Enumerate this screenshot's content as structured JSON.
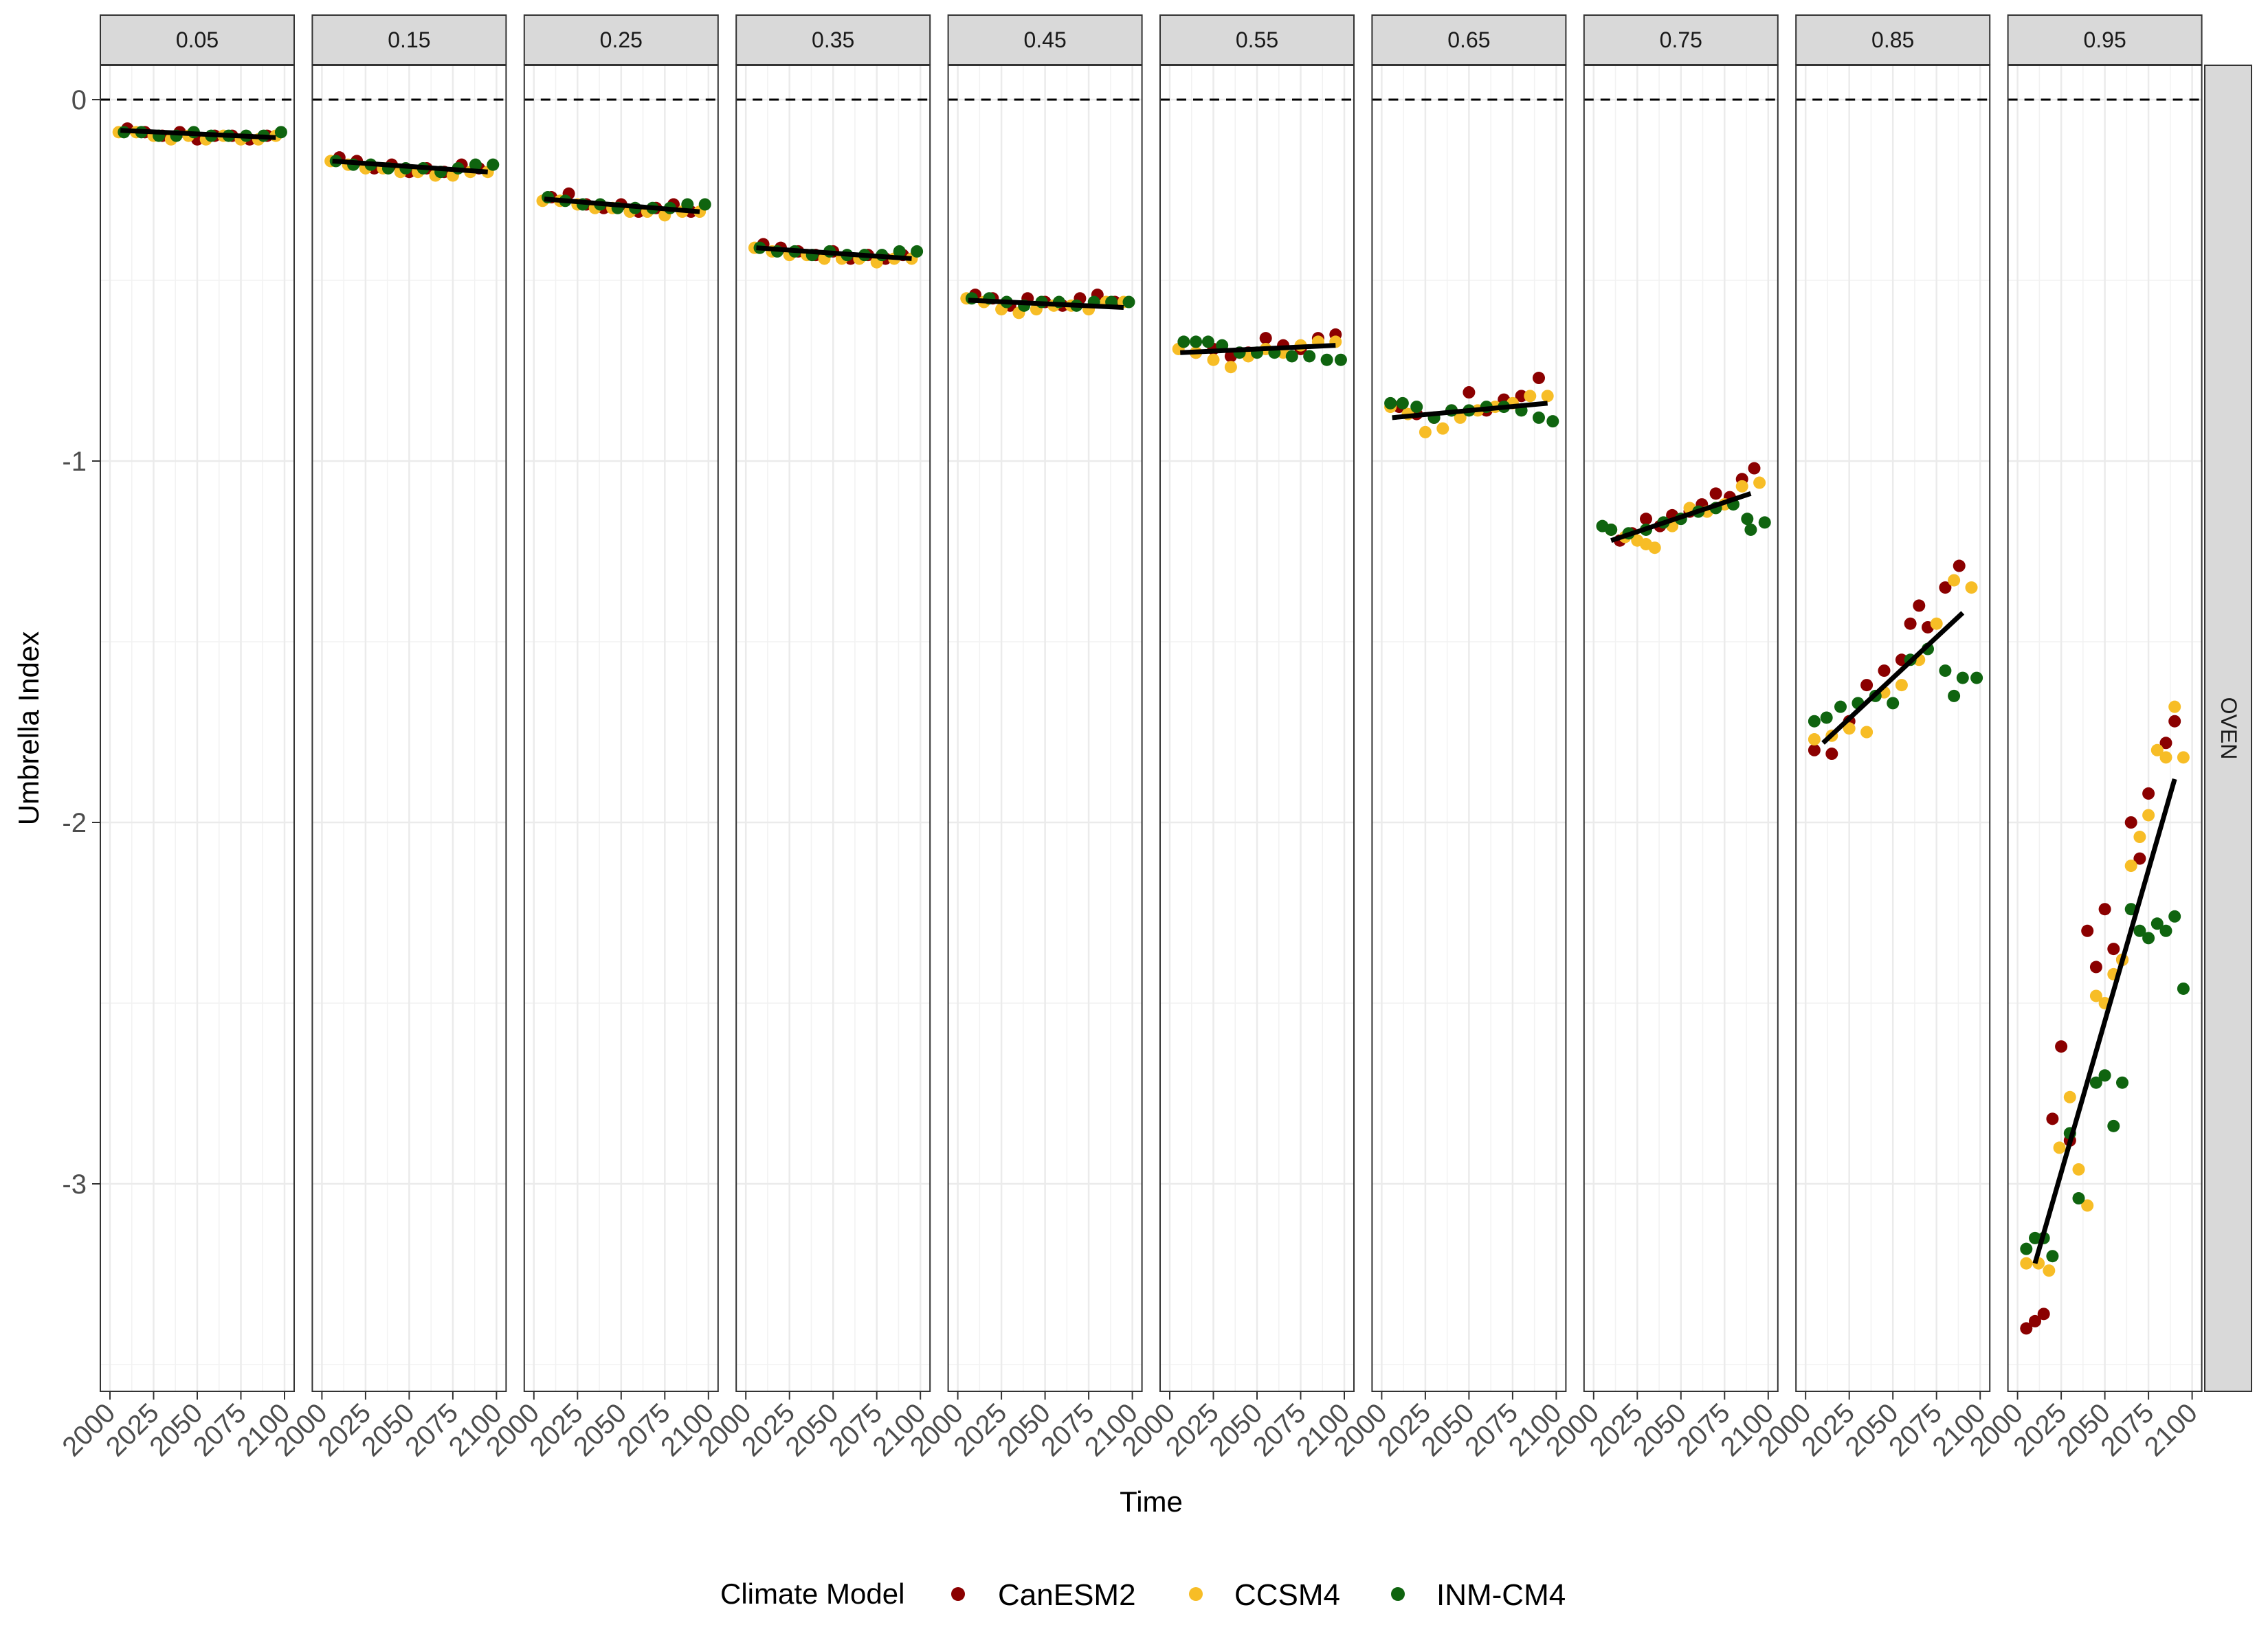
{
  "chart_data": {
    "type": "scatter",
    "ylabel": "Umbrella Index",
    "xlabel": "Time",
    "row_facet": "OVEN",
    "facets": [
      "0.05",
      "0.15",
      "0.25",
      "0.35",
      "0.45",
      "0.55",
      "0.65",
      "0.75",
      "0.85",
      "0.95"
    ],
    "xlim": [
      2000,
      2100
    ],
    "ylim": [
      -3.6,
      0.1
    ],
    "x_ticks": [
      "2000",
      "2025",
      "2050",
      "2075",
      "2100"
    ],
    "y_ticks": [
      {
        "value": 0,
        "label": "0"
      },
      {
        "value": -1,
        "label": "-1"
      },
      {
        "value": -2,
        "label": "-2"
      },
      {
        "value": -3,
        "label": "-3"
      }
    ],
    "reference_line": 0,
    "legend": {
      "title": "Climate Model",
      "position": "bottom",
      "entries": [
        {
          "name": "CanESM2",
          "color": "#8B0000"
        },
        {
          "name": "CCSM4",
          "color": "#F7BD26"
        },
        {
          "name": "INM-CM4",
          "color": "#0F640F"
        }
      ]
    },
    "trend_lines": [
      {
        "facet": "0.05",
        "x": [
          2006,
          2095
        ],
        "y": [
          -0.085,
          -0.105
        ]
      },
      {
        "facet": "0.15",
        "x": [
          2006,
          2095
        ],
        "y": [
          -0.17,
          -0.2
        ]
      },
      {
        "facet": "0.25",
        "x": [
          2006,
          2095
        ],
        "y": [
          -0.275,
          -0.31
        ]
      },
      {
        "facet": "0.35",
        "x": [
          2006,
          2095
        ],
        "y": [
          -0.41,
          -0.44
        ]
      },
      {
        "facet": "0.45",
        "x": [
          2006,
          2095
        ],
        "y": [
          -0.555,
          -0.575
        ]
      },
      {
        "facet": "0.55",
        "x": [
          2006,
          2095
        ],
        "y": [
          -0.7,
          -0.68
        ]
      },
      {
        "facet": "0.65",
        "x": [
          2006,
          2095
        ],
        "y": [
          -0.88,
          -0.84
        ]
      },
      {
        "facet": "0.75",
        "x": [
          2010,
          2090
        ],
        "y": [
          -1.22,
          -1.09
        ]
      },
      {
        "facet": "0.85",
        "x": [
          2010,
          2090
        ],
        "y": [
          -1.78,
          -1.42
        ]
      },
      {
        "facet": "0.95",
        "x": [
          2010,
          2090
        ],
        "y": [
          -3.22,
          -1.88
        ]
      }
    ],
    "series": [
      {
        "name": "CanESM2",
        "points": [
          {
            "facet": "0.05",
            "x": [
              2010,
              2020,
              2030,
              2040,
              2050,
              2060,
              2070,
              2080,
              2090
            ],
            "y": [
              -0.08,
              -0.09,
              -0.1,
              -0.09,
              -0.11,
              -0.1,
              -0.1,
              -0.11,
              -0.1
            ]
          },
          {
            "facet": "0.15",
            "x": [
              2010,
              2020,
              2030,
              2040,
              2050,
              2060,
              2070,
              2080,
              2090
            ],
            "y": [
              -0.16,
              -0.17,
              -0.19,
              -0.18,
              -0.2,
              -0.19,
              -0.2,
              -0.18,
              -0.19
            ]
          },
          {
            "facet": "0.25",
            "x": [
              2010,
              2020,
              2030,
              2040,
              2050,
              2060,
              2070,
              2080,
              2090
            ],
            "y": [
              -0.27,
              -0.26,
              -0.29,
              -0.3,
              -0.29,
              -0.31,
              -0.3,
              -0.29,
              -0.31
            ]
          },
          {
            "facet": "0.35",
            "x": [
              2010,
              2020,
              2030,
              2040,
              2050,
              2060,
              2070,
              2080,
              2090
            ],
            "y": [
              -0.4,
              -0.41,
              -0.42,
              -0.43,
              -0.42,
              -0.44,
              -0.43,
              -0.44,
              -0.43
            ]
          },
          {
            "facet": "0.45",
            "x": [
              2010,
              2020,
              2030,
              2040,
              2050,
              2060,
              2070,
              2080,
              2090
            ],
            "y": [
              -0.54,
              -0.55,
              -0.57,
              -0.55,
              -0.56,
              -0.57,
              -0.55,
              -0.54,
              -0.56
            ]
          },
          {
            "facet": "0.55",
            "x": [
              2015,
              2025,
              2035,
              2045,
              2055,
              2065,
              2075,
              2085,
              2095
            ],
            "y": [
              -0.7,
              -0.69,
              -0.71,
              -0.7,
              -0.66,
              -0.68,
              -0.69,
              -0.66,
              -0.65
            ]
          },
          {
            "facet": "0.65",
            "x": [
              2010,
              2020,
              2030,
              2040,
              2050,
              2060,
              2070,
              2080,
              2090
            ],
            "y": [
              -0.85,
              -0.87,
              -0.88,
              -0.86,
              -0.81,
              -0.86,
              -0.83,
              -0.82,
              -0.77
            ]
          },
          {
            "facet": "0.75",
            "x": [
              2015,
              2022,
              2030,
              2038,
              2045,
              2055,
              2062,
              2070,
              2078,
              2085,
              2092
            ],
            "y": [
              -1.22,
              -1.2,
              -1.16,
              -1.18,
              -1.15,
              -1.14,
              -1.12,
              -1.09,
              -1.1,
              -1.05,
              -1.02
            ]
          },
          {
            "facet": "0.85",
            "x": [
              2005,
              2015,
              2025,
              2035,
              2045,
              2055,
              2060,
              2065,
              2070,
              2080,
              2088
            ],
            "y": [
              -1.8,
              -1.81,
              -1.72,
              -1.62,
              -1.58,
              -1.55,
              -1.45,
              -1.4,
              -1.46,
              -1.35,
              -1.29
            ]
          },
          {
            "facet": "0.95",
            "x": [
              2005,
              2010,
              2015,
              2020,
              2025,
              2030,
              2040,
              2045,
              2050,
              2055,
              2060,
              2065,
              2070,
              2075,
              2085,
              2090
            ],
            "y": [
              -3.4,
              -3.38,
              -3.36,
              -2.82,
              -2.62,
              -2.88,
              -2.3,
              -2.4,
              -2.24,
              -2.35,
              -2.38,
              -2.0,
              -2.1,
              -1.92,
              -1.78,
              -1.72
            ]
          }
        ]
      },
      {
        "name": "CCSM4",
        "points": [
          {
            "facet": "0.05",
            "x": [
              2005,
              2015,
              2025,
              2035,
              2045,
              2055,
              2065,
              2075,
              2085,
              2095
            ],
            "y": [
              -0.09,
              -0.09,
              -0.1,
              -0.11,
              -0.1,
              -0.11,
              -0.1,
              -0.11,
              -0.11,
              -0.1
            ]
          },
          {
            "facet": "0.15",
            "x": [
              2005,
              2015,
              2025,
              2035,
              2045,
              2055,
              2065,
              2075,
              2085,
              2095
            ],
            "y": [
              -0.17,
              -0.18,
              -0.19,
              -0.19,
              -0.2,
              -0.2,
              -0.21,
              -0.21,
              -0.2,
              -0.2
            ]
          },
          {
            "facet": "0.25",
            "x": [
              2005,
              2015,
              2025,
              2035,
              2045,
              2055,
              2065,
              2075,
              2085,
              2095
            ],
            "y": [
              -0.28,
              -0.28,
              -0.29,
              -0.3,
              -0.3,
              -0.31,
              -0.31,
              -0.32,
              -0.31,
              -0.31
            ]
          },
          {
            "facet": "0.35",
            "x": [
              2005,
              2015,
              2025,
              2035,
              2045,
              2055,
              2065,
              2075,
              2085,
              2095
            ],
            "y": [
              -0.41,
              -0.42,
              -0.43,
              -0.43,
              -0.44,
              -0.44,
              -0.44,
              -0.45,
              -0.44,
              -0.44
            ]
          },
          {
            "facet": "0.45",
            "x": [
              2005,
              2015,
              2025,
              2035,
              2045,
              2055,
              2065,
              2075,
              2085,
              2095
            ],
            "y": [
              -0.55,
              -0.56,
              -0.58,
              -0.59,
              -0.58,
              -0.57,
              -0.57,
              -0.58,
              -0.56,
              -0.56
            ]
          },
          {
            "facet": "0.55",
            "x": [
              2005,
              2015,
              2025,
              2035,
              2045,
              2055,
              2065,
              2075,
              2085,
              2095
            ],
            "y": [
              -0.69,
              -0.7,
              -0.72,
              -0.74,
              -0.71,
              -0.69,
              -0.7,
              -0.68,
              -0.67,
              -0.67
            ]
          },
          {
            "facet": "0.65",
            "x": [
              2005,
              2015,
              2025,
              2035,
              2045,
              2055,
              2065,
              2075,
              2085,
              2095
            ],
            "y": [
              -0.85,
              -0.87,
              -0.92,
              -0.91,
              -0.88,
              -0.86,
              -0.85,
              -0.84,
              -0.82,
              -0.82
            ]
          },
          {
            "facet": "0.75",
            "x": [
              2010,
              2018,
              2025,
              2030,
              2035,
              2045,
              2055,
              2065,
              2075,
              2085,
              2095
            ],
            "y": [
              -1.19,
              -1.21,
              -1.22,
              -1.23,
              -1.24,
              -1.18,
              -1.13,
              -1.14,
              -1.12,
              -1.07,
              -1.06
            ]
          },
          {
            "facet": "0.85",
            "x": [
              2005,
              2015,
              2025,
              2035,
              2045,
              2055,
              2065,
              2075,
              2085,
              2095
            ],
            "y": [
              -1.77,
              -1.76,
              -1.74,
              -1.75,
              -1.64,
              -1.62,
              -1.55,
              -1.45,
              -1.33,
              -1.35
            ]
          },
          {
            "facet": "0.95",
            "x": [
              2005,
              2012,
              2018,
              2024,
              2030,
              2035,
              2040,
              2045,
              2050,
              2055,
              2060,
              2065,
              2070,
              2075,
              2080,
              2085,
              2090,
              2095
            ],
            "y": [
              -3.22,
              -3.22,
              -3.24,
              -2.9,
              -2.76,
              -2.96,
              -3.06,
              -2.48,
              -2.5,
              -2.42,
              -2.38,
              -2.12,
              -2.04,
              -1.98,
              -1.8,
              -1.82,
              -1.68,
              -1.82
            ]
          }
        ]
      },
      {
        "name": "INM-CM4",
        "points": [
          {
            "facet": "0.05",
            "x": [
              2008,
              2018,
              2028,
              2038,
              2048,
              2058,
              2068,
              2078,
              2088,
              2098
            ],
            "y": [
              -0.09,
              -0.09,
              -0.1,
              -0.1,
              -0.09,
              -0.1,
              -0.1,
              -0.1,
              -0.1,
              -0.09
            ]
          },
          {
            "facet": "0.15",
            "x": [
              2008,
              2018,
              2028,
              2038,
              2048,
              2058,
              2068,
              2078,
              2088,
              2098
            ],
            "y": [
              -0.17,
              -0.18,
              -0.18,
              -0.19,
              -0.19,
              -0.19,
              -0.2,
              -0.19,
              -0.18,
              -0.18
            ]
          },
          {
            "facet": "0.25",
            "x": [
              2008,
              2018,
              2028,
              2038,
              2048,
              2058,
              2068,
              2078,
              2088,
              2098
            ],
            "y": [
              -0.27,
              -0.28,
              -0.29,
              -0.29,
              -0.3,
              -0.3,
              -0.3,
              -0.3,
              -0.29,
              -0.29
            ]
          },
          {
            "facet": "0.35",
            "x": [
              2008,
              2018,
              2028,
              2038,
              2048,
              2058,
              2068,
              2078,
              2088,
              2098
            ],
            "y": [
              -0.41,
              -0.42,
              -0.42,
              -0.43,
              -0.42,
              -0.43,
              -0.43,
              -0.43,
              -0.42,
              -0.42
            ]
          },
          {
            "facet": "0.45",
            "x": [
              2008,
              2018,
              2028,
              2038,
              2048,
              2058,
              2068,
              2078,
              2088,
              2098
            ],
            "y": [
              -0.55,
              -0.55,
              -0.56,
              -0.57,
              -0.56,
              -0.56,
              -0.57,
              -0.56,
              -0.56,
              -0.56
            ]
          },
          {
            "facet": "0.55",
            "x": [
              2008,
              2015,
              2022,
              2030,
              2040,
              2050,
              2060,
              2070,
              2080,
              2090,
              2098
            ],
            "y": [
              -0.67,
              -0.67,
              -0.67,
              -0.68,
              -0.7,
              -0.7,
              -0.7,
              -0.71,
              -0.71,
              -0.72,
              -0.72
            ]
          },
          {
            "facet": "0.65",
            "x": [
              2005,
              2012,
              2020,
              2030,
              2040,
              2050,
              2060,
              2070,
              2080,
              2090,
              2098
            ],
            "y": [
              -0.84,
              -0.84,
              -0.85,
              -0.88,
              -0.86,
              -0.86,
              -0.85,
              -0.85,
              -0.86,
              -0.88,
              -0.89
            ]
          },
          {
            "facet": "0.75",
            "x": [
              2005,
              2010,
              2020,
              2030,
              2040,
              2050,
              2060,
              2070,
              2080,
              2088,
              2090,
              2098
            ],
            "y": [
              -1.18,
              -1.19,
              -1.2,
              -1.19,
              -1.17,
              -1.16,
              -1.14,
              -1.13,
              -1.12,
              -1.16,
              -1.19,
              -1.17
            ]
          },
          {
            "facet": "0.85",
            "x": [
              2005,
              2012,
              2020,
              2030,
              2040,
              2050,
              2060,
              2070,
              2080,
              2085,
              2090,
              2098
            ],
            "y": [
              -1.72,
              -1.71,
              -1.68,
              -1.67,
              -1.65,
              -1.67,
              -1.55,
              -1.52,
              -1.58,
              -1.65,
              -1.6,
              -1.6
            ]
          },
          {
            "facet": "0.95",
            "x": [
              2005,
              2010,
              2015,
              2020,
              2030,
              2035,
              2045,
              2050,
              2055,
              2060,
              2065,
              2070,
              2075,
              2080,
              2085,
              2090,
              2095
            ],
            "y": [
              -3.18,
              -3.15,
              -3.15,
              -3.2,
              -2.86,
              -3.04,
              -2.72,
              -2.7,
              -2.84,
              -2.72,
              -2.24,
              -2.3,
              -2.32,
              -2.28,
              -2.3,
              -2.26,
              -2.46
            ]
          }
        ]
      }
    ]
  }
}
